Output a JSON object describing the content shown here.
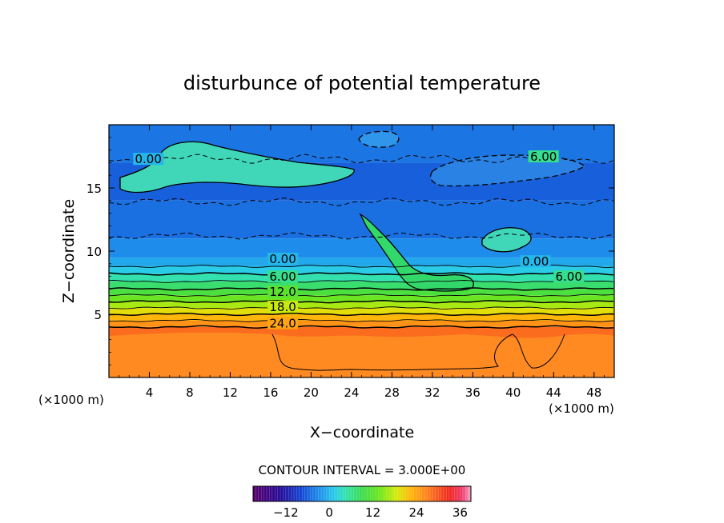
{
  "chart_data": {
    "type": "heatmap",
    "title": "disturbunce of potential temperature",
    "xlabel": "X−coordinate",
    "ylabel": "Z−coordinate",
    "x_unit_label": "(×1000 m)",
    "y_unit_label": "(×1000 m)",
    "xlim": [
      0,
      50
    ],
    "ylim": [
      0,
      20
    ],
    "x_ticks": [
      4,
      8,
      12,
      16,
      20,
      24,
      28,
      32,
      36,
      40,
      44,
      48
    ],
    "y_ticks": [
      5,
      10,
      15
    ],
    "contour_interval_text": "CONTOUR INTERVAL = 3.000E+00",
    "contour_interval": 3,
    "colorbar": {
      "range": [
        -21,
        39
      ],
      "ticks": [
        -12,
        0,
        12,
        24,
        36
      ],
      "tick_labels": [
        "−12",
        "0",
        "12",
        "24",
        "36"
      ]
    },
    "layers": [
      {
        "z_top": 4.0,
        "value": 28.5
      },
      {
        "z_top": 4.5,
        "value": 25.5
      },
      {
        "z_top": 5.0,
        "value": 22.5
      },
      {
        "z_top": 5.5,
        "value": 19.5
      },
      {
        "z_top": 6.0,
        "value": 16.5
      },
      {
        "z_top": 6.5,
        "value": 13.5
      },
      {
        "z_top": 7.0,
        "value": 10.5
      },
      {
        "z_top": 7.6,
        "value": 7.5
      },
      {
        "z_top": 8.2,
        "value": 4.5
      },
      {
        "z_top": 8.8,
        "value": 1.5
      },
      {
        "z_top": 9.5,
        "value": -1.0
      },
      {
        "z_top": 11.0,
        "value": -3.0
      },
      {
        "z_top": 14.0,
        "value": -5.0
      },
      {
        "z_top": 17.0,
        "value": -6.0
      },
      {
        "z_top": 20.0,
        "value": -4.5
      }
    ],
    "contour_labels": [
      {
        "text": "0.00",
        "x": 3.9,
        "z": 17.2
      },
      {
        "text": "6.00",
        "x": 43.0,
        "z": 17.4
      },
      {
        "text": "0.00",
        "x": 17.2,
        "z": 9.3
      },
      {
        "text": "0.00",
        "x": 42.2,
        "z": 9.1
      },
      {
        "text": "6.00",
        "x": 17.2,
        "z": 7.9
      },
      {
        "text": "6.00",
        "x": 45.5,
        "z": 7.9
      },
      {
        "text": "12.0",
        "x": 17.2,
        "z": 6.7
      },
      {
        "text": "18.0",
        "x": 17.2,
        "z": 5.5
      },
      {
        "text": "24.0",
        "x": 17.2,
        "z": 4.2
      }
    ]
  }
}
